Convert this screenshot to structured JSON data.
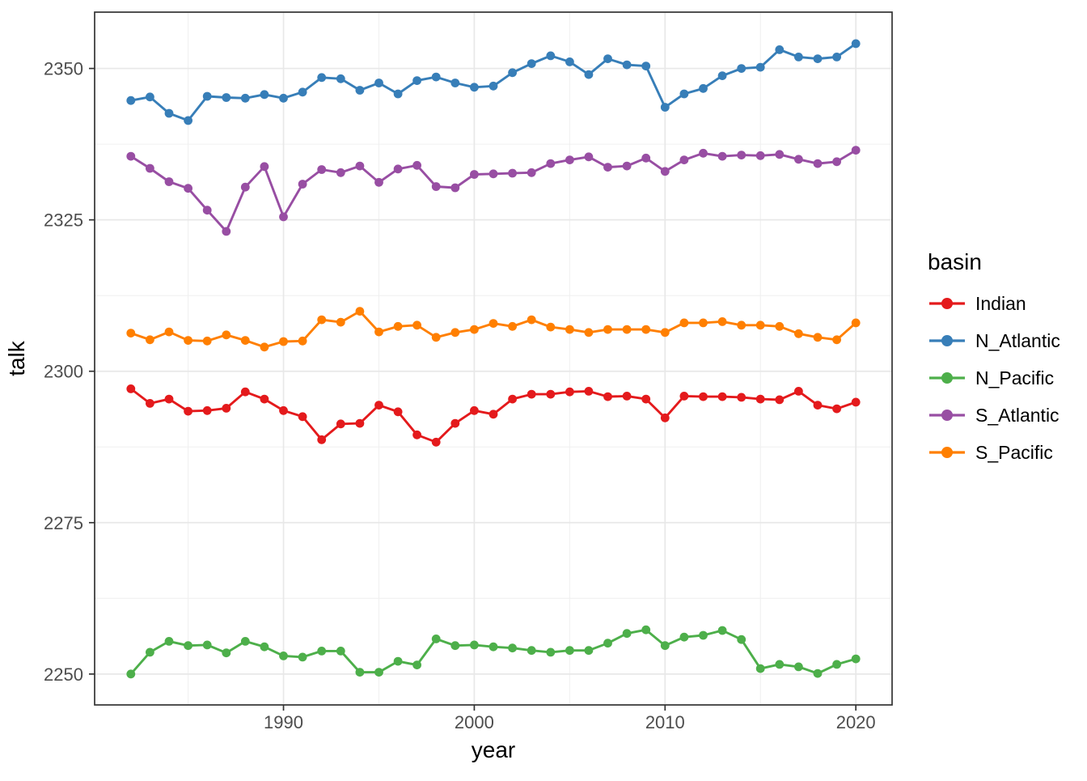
{
  "chart_data": {
    "type": "line",
    "x": [
      1982,
      1983,
      1984,
      1985,
      1986,
      1987,
      1988,
      1989,
      1990,
      1991,
      1992,
      1993,
      1994,
      1995,
      1996,
      1997,
      1998,
      1999,
      2000,
      2001,
      2002,
      2003,
      2004,
      2005,
      2006,
      2007,
      2008,
      2009,
      2010,
      2011,
      2012,
      2013,
      2014,
      2015,
      2016,
      2017,
      2018,
      2019,
      2020
    ],
    "series": [
      {
        "name": "Indian",
        "color": "#E41A1C",
        "values": [
          2297.1,
          2294.7,
          2295.4,
          2293.4,
          2293.5,
          2293.9,
          2296.6,
          2295.4,
          2293.5,
          2292.5,
          2288.7,
          2291.3,
          2291.4,
          2294.4,
          2293.3,
          2289.5,
          2288.3,
          2291.4,
          2293.5,
          2292.9,
          2295.4,
          2296.2,
          2296.2,
          2296.6,
          2296.7,
          2295.8,
          2295.9,
          2295.4,
          2292.3,
          2295.9,
          2295.8,
          2295.8,
          2295.7,
          2295.4,
          2295.3,
          2296.7,
          2294.4,
          2293.8,
          2294.9
        ]
      },
      {
        "name": "N_Atlantic",
        "color": "#377EB8",
        "values": [
          2344.7,
          2345.3,
          2342.6,
          2341.4,
          2345.4,
          2345.2,
          2345.1,
          2345.7,
          2345.1,
          2346.1,
          2348.5,
          2348.3,
          2346.4,
          2347.6,
          2345.8,
          2348.0,
          2348.6,
          2347.6,
          2346.9,
          2347.1,
          2349.3,
          2350.8,
          2352.1,
          2351.1,
          2349.0,
          2351.6,
          2350.6,
          2350.4,
          2343.6,
          2345.8,
          2346.7,
          2348.8,
          2350.0,
          2350.2,
          2353.1,
          2351.9,
          2351.6,
          2351.9,
          2354.1
        ]
      },
      {
        "name": "N_Pacific",
        "color": "#4DAF4A",
        "values": [
          2250.0,
          2253.6,
          2255.4,
          2254.7,
          2254.8,
          2253.5,
          2255.4,
          2254.5,
          2253.0,
          2252.8,
          2253.8,
          2253.8,
          2250.3,
          2250.3,
          2252.1,
          2251.5,
          2255.8,
          2254.7,
          2254.8,
          2254.5,
          2254.3,
          2253.9,
          2253.6,
          2253.9,
          2253.9,
          2255.1,
          2256.7,
          2257.3,
          2254.7,
          2256.1,
          2256.4,
          2257.2,
          2255.7,
          2250.9,
          2251.6,
          2251.2,
          2250.1,
          2251.6,
          2252.5
        ]
      },
      {
        "name": "S_Atlantic",
        "color": "#984EA3",
        "values": [
          2335.5,
          2333.5,
          2331.3,
          2330.2,
          2326.6,
          2323.1,
          2330.4,
          2333.8,
          2325.5,
          2330.9,
          2333.3,
          2332.8,
          2333.9,
          2331.2,
          2333.4,
          2334.0,
          2330.5,
          2330.3,
          2332.5,
          2332.6,
          2332.7,
          2332.8,
          2334.3,
          2334.9,
          2335.4,
          2333.7,
          2333.9,
          2335.2,
          2333.0,
          2334.9,
          2336.0,
          2335.5,
          2335.7,
          2335.6,
          2335.8,
          2335.0,
          2334.3,
          2334.6,
          2336.5
        ]
      },
      {
        "name": "S_Pacific",
        "color": "#FF7F00",
        "values": [
          2306.3,
          2305.2,
          2306.5,
          2305.1,
          2305.0,
          2306.0,
          2305.1,
          2304.0,
          2304.9,
          2305.0,
          2308.5,
          2308.1,
          2309.9,
          2306.5,
          2307.4,
          2307.6,
          2305.6,
          2306.4,
          2306.9,
          2307.9,
          2307.4,
          2308.5,
          2307.3,
          2306.9,
          2306.4,
          2306.9,
          2306.9,
          2306.9,
          2306.4,
          2308.0,
          2308.0,
          2308.2,
          2307.6,
          2307.6,
          2307.4,
          2306.2,
          2305.6,
          2305.2,
          2308.0
        ]
      }
    ],
    "title": "",
    "xlabel": "year",
    "ylabel": "talk",
    "legend_title": "basin",
    "legend_position": "right",
    "grid": true,
    "x_domain": [
      1980.1,
      2021.9
    ],
    "y_domain": [
      2244.9,
      2359.3
    ],
    "x_ticks": [
      1990,
      2000,
      2010,
      2020
    ],
    "x_minor_breaks": [
      1985,
      1995,
      2005,
      2015
    ],
    "y_ticks": [
      2250,
      2275,
      2300,
      2325,
      2350
    ],
    "y_minor_breaks": [
      2262.5,
      2287.5,
      2312.5,
      2337.5
    ]
  },
  "style": {
    "panel_background": "#ffffff",
    "panel_border_color": "#333333",
    "major_grid_color": "#e8e8e8",
    "minor_grid_color": "#f0f0f0",
    "tick_mark_color": "#333333",
    "tick_label_color": "#4d4d4d"
  }
}
